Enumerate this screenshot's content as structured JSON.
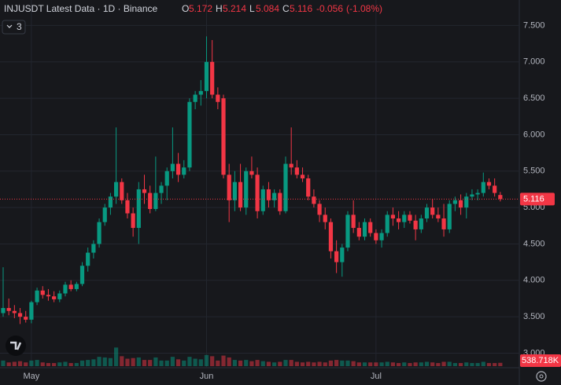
{
  "header": {
    "title": "INJUSDT Latest Data · 1D · Binance",
    "ohlc_labels": [
      "O",
      "H",
      "L",
      "C"
    ],
    "change": -0.056,
    "change_pct_label": "(-1.08%)",
    "indicator_count": 3
  },
  "chart_data": {
    "type": "candlestick",
    "categories": [
      null,
      null,
      null,
      null,
      null,
      "May",
      null,
      null,
      null,
      null,
      null,
      null,
      null,
      null,
      null,
      null,
      null,
      null,
      null,
      null,
      null,
      null,
      null,
      null,
      null,
      null,
      null,
      null,
      null,
      null,
      null,
      null,
      null,
      null,
      null,
      null,
      "Jun",
      null,
      null,
      null,
      null,
      null,
      null,
      null,
      null,
      null,
      null,
      null,
      null,
      null,
      null,
      null,
      null,
      null,
      null,
      null,
      null,
      null,
      null,
      null,
      null,
      null,
      null,
      null,
      null,
      null,
      "Jul",
      null,
      null,
      null,
      null,
      null,
      null,
      null,
      null,
      null,
      null,
      null,
      null,
      null,
      null,
      null,
      null,
      null,
      null,
      null,
      null,
      null,
      null
    ],
    "open": [
      3.55,
      3.62,
      3.58,
      3.55,
      3.5,
      3.46,
      3.7,
      3.86,
      3.8,
      3.78,
      3.74,
      3.82,
      3.94,
      3.88,
      3.95,
      4.2,
      4.38,
      4.5,
      4.8,
      5.0,
      5.15,
      5.35,
      5.1,
      4.92,
      4.72,
      5.25,
      5.2,
      4.98,
      5.2,
      5.3,
      5.5,
      5.6,
      5.45,
      5.55,
      6.45,
      6.55,
      6.6,
      7.0,
      6.55,
      6.5,
      5.45,
      5.1,
      5.35,
      5.0,
      5.5,
      5.45,
      4.95,
      5.25,
      5.1,
      5.2,
      4.95,
      5.6,
      5.55,
      5.45,
      5.4,
      5.15,
      5.05,
      4.9,
      4.8,
      4.4,
      4.25,
      4.45,
      4.9,
      4.72,
      4.6,
      4.8,
      4.65,
      4.55,
      4.65,
      4.9,
      4.85,
      4.8,
      4.9,
      4.82,
      4.7,
      4.85,
      5.0,
      4.9,
      4.85,
      4.7,
      5.05,
      5.1,
      5.0,
      5.15,
      5.18,
      5.2,
      5.35,
      5.3,
      5.172
    ],
    "high": [
      4.18,
      3.75,
      3.66,
      3.62,
      3.58,
      3.72,
      3.9,
      3.92,
      3.88,
      3.85,
      3.86,
      3.98,
      4.0,
      3.98,
      4.25,
      4.45,
      4.55,
      4.85,
      5.05,
      5.2,
      6.1,
      5.4,
      5.2,
      5.0,
      5.35,
      5.45,
      5.3,
      5.7,
      5.35,
      5.55,
      6.1,
      5.75,
      5.65,
      6.5,
      6.6,
      6.75,
      7.35,
      7.3,
      6.65,
      6.55,
      5.6,
      5.5,
      5.6,
      5.55,
      5.7,
      5.55,
      5.3,
      5.35,
      5.25,
      5.25,
      5.7,
      6.1,
      5.65,
      5.55,
      5.45,
      5.25,
      5.1,
      5.0,
      4.85,
      4.55,
      4.5,
      4.95,
      5.1,
      4.8,
      4.85,
      4.85,
      4.7,
      4.7,
      4.95,
      5.0,
      4.95,
      4.95,
      4.95,
      4.9,
      4.9,
      5.05,
      5.12,
      5.0,
      5.05,
      5.1,
      5.15,
      5.18,
      5.2,
      5.25,
      5.25,
      5.48,
      5.4,
      5.4,
      5.214
    ],
    "low": [
      3.5,
      3.52,
      3.48,
      3.4,
      3.42,
      3.41,
      3.66,
      3.75,
      3.72,
      3.7,
      3.7,
      3.78,
      3.85,
      3.85,
      3.92,
      4.12,
      4.3,
      4.45,
      4.75,
      4.9,
      5.05,
      5.05,
      4.85,
      4.6,
      4.5,
      5.05,
      4.92,
      4.95,
      5.05,
      5.1,
      5.4,
      5.35,
      5.4,
      5.5,
      6.35,
      6.4,
      6.5,
      6.5,
      6.35,
      5.4,
      4.8,
      4.95,
      4.95,
      4.9,
      5.4,
      4.85,
      4.9,
      5.0,
      5.0,
      4.9,
      4.92,
      5.45,
      5.4,
      5.35,
      5.1,
      5.0,
      4.8,
      4.7,
      4.3,
      4.1,
      4.05,
      4.4,
      4.65,
      4.55,
      4.55,
      4.6,
      4.5,
      4.45,
      4.6,
      4.75,
      4.7,
      4.72,
      4.78,
      4.55,
      4.65,
      4.8,
      4.85,
      4.8,
      4.6,
      4.65,
      4.95,
      4.9,
      4.85,
      5.1,
      5.1,
      5.15,
      5.25,
      5.15,
      5.084
    ],
    "close": [
      3.62,
      3.58,
      3.55,
      3.5,
      3.46,
      3.7,
      3.86,
      3.8,
      3.78,
      3.74,
      3.82,
      3.94,
      3.88,
      3.95,
      4.2,
      4.38,
      4.5,
      4.8,
      5.0,
      5.15,
      5.35,
      5.1,
      4.92,
      4.72,
      5.25,
      5.2,
      4.98,
      5.2,
      5.3,
      5.5,
      5.6,
      5.45,
      5.55,
      6.45,
      6.55,
      6.6,
      7.0,
      6.55,
      6.45,
      5.45,
      5.1,
      5.35,
      5.0,
      5.5,
      5.45,
      4.95,
      5.25,
      5.1,
      5.2,
      4.95,
      5.6,
      5.55,
      5.45,
      5.4,
      5.15,
      5.05,
      4.9,
      4.8,
      4.4,
      4.25,
      4.45,
      4.9,
      4.72,
      4.6,
      4.8,
      4.65,
      4.55,
      4.65,
      4.9,
      4.85,
      4.8,
      4.9,
      4.82,
      4.7,
      4.85,
      5.0,
      4.9,
      4.85,
      4.7,
      5.05,
      5.1,
      5.0,
      5.15,
      5.18,
      5.2,
      5.35,
      5.3,
      5.2,
      5.116
    ],
    "volume": [
      900,
      600,
      700,
      800,
      600,
      900,
      1000,
      600,
      500,
      500,
      600,
      700,
      500,
      500,
      900,
      1000,
      1100,
      1500,
      1400,
      1300,
      3000,
      1600,
      1200,
      1300,
      1400,
      1000,
      1000,
      1400,
      900,
      900,
      1500,
      1100,
      900,
      1500,
      1200,
      1100,
      1800,
      1600,
      900,
      1700,
      1400,
      1000,
      900,
      1000,
      800,
      1000,
      800,
      700,
      600,
      700,
      1000,
      1000,
      700,
      600,
      700,
      600,
      700,
      600,
      900,
      1000,
      900,
      900,
      800,
      600,
      600,
      600,
      600,
      600,
      700,
      600,
      500,
      600,
      500,
      600,
      600,
      700,
      600,
      500,
      700,
      700,
      500,
      500,
      600,
      500,
      500,
      700,
      500,
      500,
      538.718
    ],
    "last_volume_label": "538.718K",
    "volume_lim": [
      0,
      3800
    ],
    "ylim": [
      2.8,
      7.85
    ],
    "yticks": [
      {
        "value": 3,
        "label": "3.000"
      },
      {
        "value": 3.5,
        "label": "3.500"
      },
      {
        "value": 4,
        "label": "4.000"
      },
      {
        "value": 4.5,
        "label": "4.500"
      },
      {
        "value": 5,
        "label": "5.000"
      },
      {
        "value": 5.5,
        "label": "5.500"
      },
      {
        "value": 6,
        "label": "6.000"
      },
      {
        "value": 6.5,
        "label": "6.500"
      },
      {
        "value": 7,
        "label": "7.000"
      },
      {
        "value": 7.5,
        "label": "7.500"
      }
    ],
    "grid": true,
    "up_color": "#089981",
    "down_color": "#f23645"
  }
}
